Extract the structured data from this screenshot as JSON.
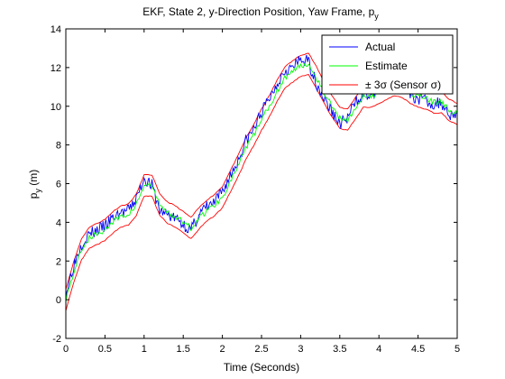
{
  "chart_data": {
    "type": "line",
    "title": "EKF, State 2, y-Direction Position, Yaw Frame, p",
    "title_subscript": "y",
    "xlabel": "Time (Seconds)",
    "ylabel": "p",
    "ylabel_subscript": "y",
    "ylabel_unit": " (m)",
    "xlim": [
      0,
      5
    ],
    "ylim": [
      -2,
      14
    ],
    "xticks": [
      "0",
      "0.5",
      "1",
      "1.5",
      "2",
      "2.5",
      "3",
      "3.5",
      "4",
      "4.5",
      "5"
    ],
    "yticks": [
      "-2",
      "0",
      "2",
      "4",
      "6",
      "8",
      "10",
      "12",
      "14"
    ],
    "grid": false,
    "legend_position": "top-right",
    "x": [
      0,
      0.1,
      0.2,
      0.3,
      0.4,
      0.5,
      0.6,
      0.7,
      0.8,
      0.9,
      1.0,
      1.1,
      1.2,
      1.3,
      1.4,
      1.5,
      1.6,
      1.7,
      1.8,
      1.9,
      2.0,
      2.1,
      2.2,
      2.3,
      2.4,
      2.5,
      2.6,
      2.7,
      2.8,
      2.9,
      3.0,
      3.1,
      3.2,
      3.3,
      3.4,
      3.5,
      3.6,
      3.7,
      3.8,
      3.9,
      4.0,
      4.1,
      4.2,
      4.3,
      4.4,
      4.5,
      4.6,
      4.7,
      4.8,
      4.9,
      5.0
    ],
    "series": [
      {
        "name": "Actual",
        "color": "#0000ff",
        "values": [
          0.3,
          1.8,
          2.9,
          3.4,
          3.6,
          3.8,
          4.2,
          4.5,
          4.6,
          5.2,
          6.3,
          5.9,
          4.6,
          4.4,
          4.2,
          3.9,
          3.6,
          4.4,
          4.8,
          5.0,
          5.6,
          6.4,
          7.2,
          8.2,
          8.8,
          9.7,
          10.4,
          11.2,
          11.9,
          12.0,
          12.4,
          12.3,
          11.2,
          10.4,
          9.7,
          9.1,
          9.4,
          10.2,
          10.7,
          10.5,
          10.9,
          11.0,
          11.2,
          11.0,
          10.6,
          10.4,
          10.3,
          10.1,
          10.2,
          9.6,
          9.6
        ]
      },
      {
        "name": "Estimate",
        "color": "#00ff00",
        "values": [
          0.0,
          1.4,
          2.6,
          3.2,
          3.4,
          3.6,
          4.0,
          4.3,
          4.4,
          4.9,
          5.9,
          5.9,
          4.9,
          4.5,
          4.3,
          4.0,
          3.7,
          4.2,
          4.6,
          4.9,
          5.3,
          6.1,
          6.9,
          7.8,
          8.5,
          9.3,
          10.0,
          10.8,
          11.5,
          11.8,
          12.1,
          12.2,
          11.5,
          10.7,
          10.0,
          9.4,
          9.3,
          9.9,
          10.5,
          10.5,
          10.7,
          10.9,
          11.1,
          11.0,
          10.7,
          10.5,
          10.4,
          10.2,
          10.2,
          9.8,
          9.6
        ]
      },
      {
        "name": "± 3σ (Sensor σ)",
        "color": "#ff0000",
        "offset": 0.55,
        "values": [
          0.0,
          1.4,
          2.6,
          3.2,
          3.4,
          3.6,
          4.0,
          4.3,
          4.4,
          4.9,
          5.9,
          5.9,
          4.9,
          4.5,
          4.3,
          4.0,
          3.7,
          4.2,
          4.6,
          4.9,
          5.3,
          6.1,
          6.9,
          7.8,
          8.5,
          9.3,
          10.0,
          10.8,
          11.5,
          11.8,
          12.1,
          12.2,
          11.5,
          10.7,
          10.0,
          9.4,
          9.3,
          9.9,
          10.5,
          10.5,
          10.7,
          10.9,
          11.1,
          11.0,
          10.7,
          10.5,
          10.4,
          10.2,
          10.2,
          9.8,
          9.6
        ]
      }
    ],
    "colors": {
      "frame": "#000000",
      "background": "#ffffff"
    }
  }
}
